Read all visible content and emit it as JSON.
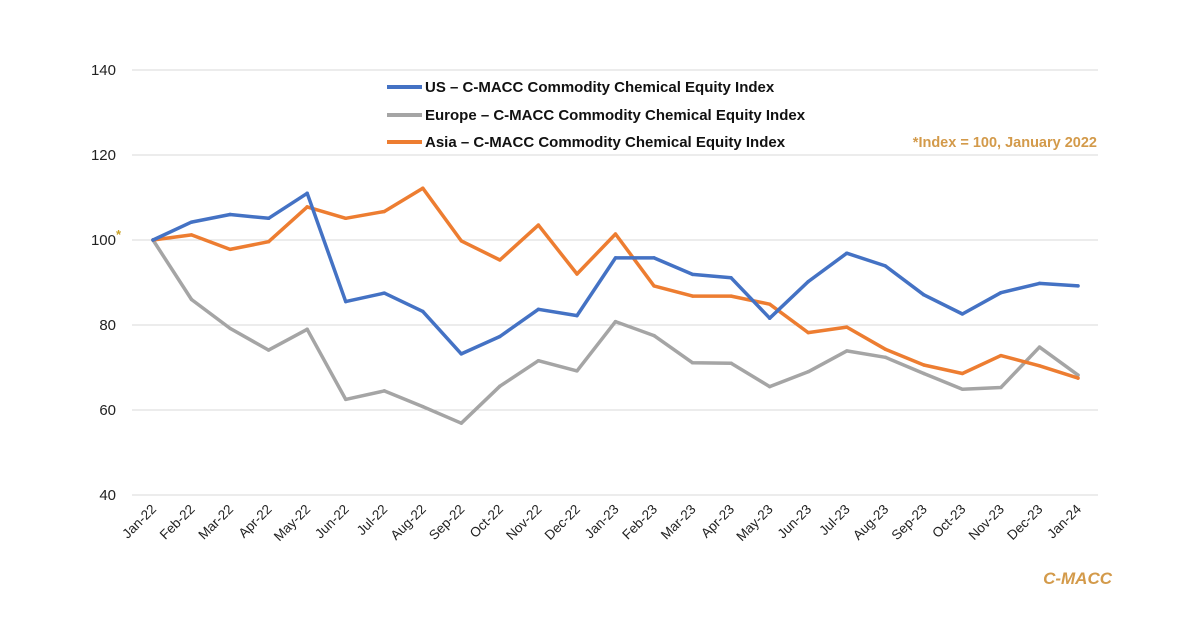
{
  "chart_data": {
    "type": "line",
    "title": "",
    "xlabel": "",
    "ylabel": "",
    "ylim": [
      40,
      140
    ],
    "yticks": [
      40,
      60,
      80,
      100,
      120,
      140
    ],
    "ytick_labels": [
      "40",
      "60",
      "80",
      "100",
      "120",
      "140"
    ],
    "base_marker": "*",
    "grid": "horizontal",
    "legend_position": "top-center",
    "categories": [
      "Jan-22",
      "Feb-22",
      "Mar-22",
      "Apr-22",
      "May-22",
      "Jun-22",
      "Jul-22",
      "Aug-22",
      "Sep-22",
      "Oct-22",
      "Nov-22",
      "Dec-22",
      "Jan-23",
      "Feb-23",
      "Mar-23",
      "Apr-23",
      "May-23",
      "Jun-23",
      "Jul-23",
      "Aug-23",
      "Sep-23",
      "Oct-23",
      "Nov-23",
      "Dec-23",
      "Jan-24"
    ],
    "series": [
      {
        "name": "US – C-MACC Commodity Chemical Equity Index",
        "color": "#4472C4",
        "values": [
          100,
          104.2,
          106,
          105.1,
          111,
          85.5,
          87.5,
          83.2,
          73.2,
          77.3,
          83.7,
          82.2,
          95.8,
          95.8,
          91.9,
          91.1,
          81.6,
          90.2,
          96.9,
          93.9,
          87.1,
          82.6,
          87.6,
          89.8,
          89.2
        ]
      },
      {
        "name": "Europe – C-MACC Commodity Chemical Equity Index",
        "color": "#A5A5A5",
        "values": [
          100,
          86,
          79.2,
          74.1,
          79,
          62.5,
          64.5,
          60.8,
          56.9,
          65.6,
          71.6,
          69.2,
          80.8,
          77.5,
          71.1,
          71,
          65.5,
          69,
          73.9,
          72.4,
          68.6,
          64.9,
          65.3,
          74.8,
          68.2
        ]
      },
      {
        "name": "Asia – C-MACC Commodity Chemical Equity Index",
        "color": "#ED7D31",
        "values": [
          100,
          101.2,
          97.8,
          99.6,
          107.8,
          105.1,
          106.7,
          112.2,
          99.8,
          95.3,
          103.5,
          92,
          101.4,
          89.2,
          86.8,
          86.8,
          84.9,
          78.2,
          79.5,
          74.3,
          70.6,
          68.6,
          72.8,
          70.4,
          67.5
        ]
      }
    ],
    "annotations": {
      "index_note": "*Index = 100, January 2022",
      "brand": "C-MACC"
    }
  },
  "colors": {
    "accent": "#D39A4A",
    "star": "#C9A227",
    "grid": "#D9D9D9"
  }
}
